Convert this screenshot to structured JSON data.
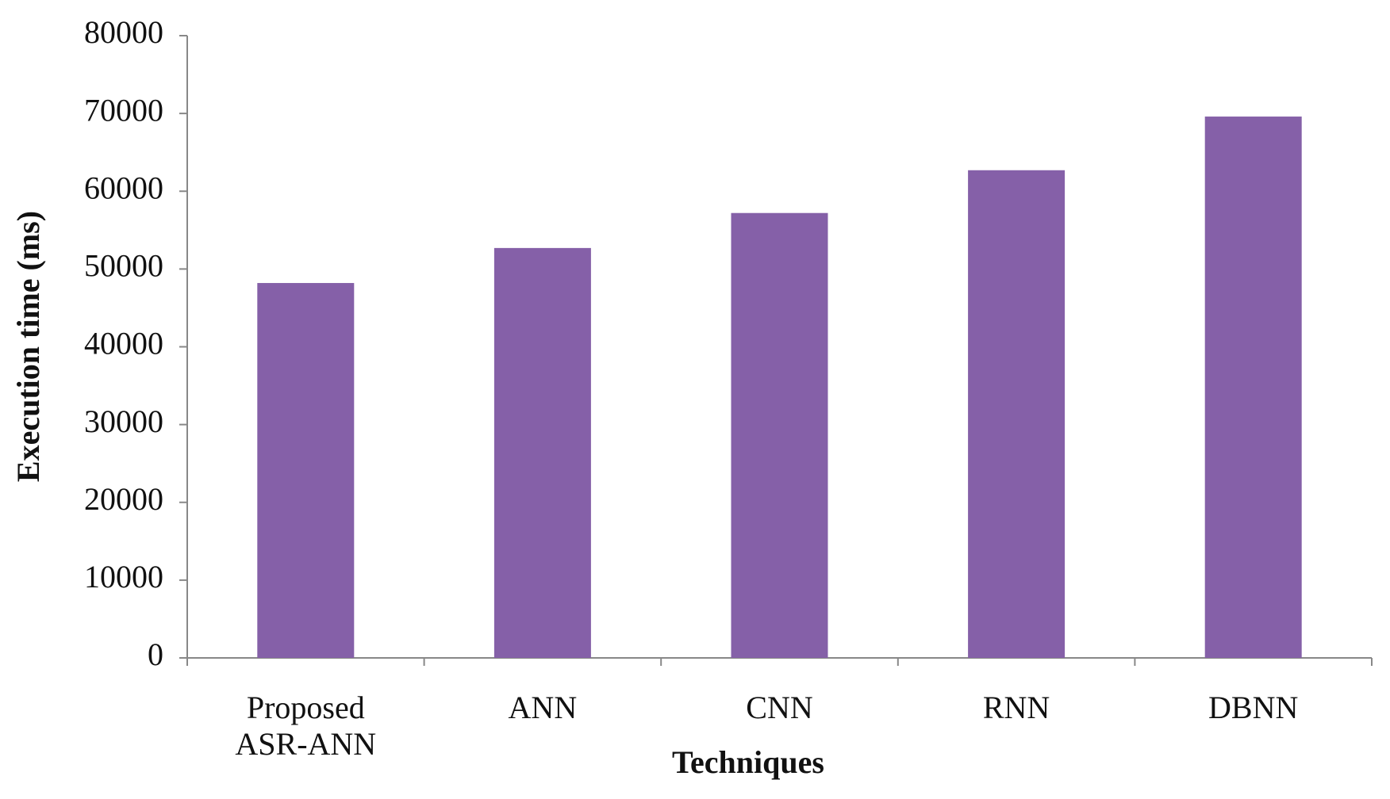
{
  "chart_data": {
    "type": "bar",
    "x_label": "Techniques",
    "y_label": "Execution time (ms)",
    "categories": [
      "Proposed ASR-ANN",
      "ANN",
      "CNN",
      "RNN",
      "DBNN"
    ],
    "values": [
      48200,
      52700,
      57200,
      62700,
      69600
    ],
    "color": "#8560a8",
    "ylim": [
      0,
      80000
    ],
    "yticks": [
      0,
      10000,
      20000,
      30000,
      40000,
      50000,
      60000,
      70000,
      80000
    ],
    "grid": false
  }
}
